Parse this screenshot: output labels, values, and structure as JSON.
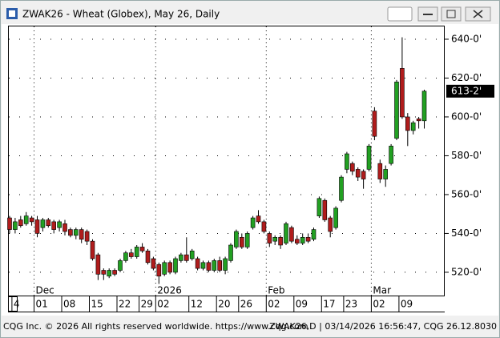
{
  "window": {
    "title": "ZWAK26 - Wheat (Globex), May 26, Daily"
  },
  "footer": {
    "left": "CQG Inc. © 2026 All rights reserved worldwide. https://www.cqg.com",
    "right": "ZWAK26,D | 03/14/2026 16:56:47, CQG 26.12.8030"
  },
  "chart_data": {
    "type": "candlestick",
    "categories": [
      null,
      "4",
      null,
      null,
      null,
      "01",
      null,
      null,
      null,
      null,
      "08",
      null,
      null,
      null,
      null,
      "15",
      null,
      null,
      null,
      null,
      "22",
      null,
      null,
      null,
      "29",
      null,
      null,
      "02",
      null,
      null,
      null,
      null,
      null,
      "12",
      null,
      null,
      null,
      null,
      "20",
      null,
      null,
      null,
      "26",
      null,
      null,
      null,
      null,
      "02",
      null,
      null,
      null,
      null,
      "09",
      null,
      null,
      null,
      null,
      "17",
      null,
      null,
      null,
      "23",
      null,
      null,
      null,
      null,
      "02",
      null,
      null,
      null,
      null,
      "09",
      null,
      null,
      null,
      null
    ],
    "periods": [
      null,
      null,
      null,
      null,
      null,
      "Dec",
      null,
      null,
      null,
      null,
      null,
      null,
      null,
      null,
      null,
      null,
      null,
      null,
      null,
      null,
      null,
      null,
      null,
      null,
      null,
      null,
      null,
      "2026",
      null,
      null,
      null,
      null,
      null,
      null,
      null,
      null,
      null,
      null,
      null,
      null,
      null,
      null,
      null,
      null,
      null,
      null,
      null,
      "Feb",
      null,
      null,
      null,
      null,
      null,
      null,
      null,
      null,
      null,
      null,
      null,
      null,
      null,
      null,
      null,
      null,
      null,
      null,
      "Mar",
      null,
      null,
      null,
      null,
      null,
      null,
      null,
      null,
      null
    ],
    "open": [
      548,
      542,
      547,
      545,
      548,
      547,
      543,
      547,
      546,
      543,
      545,
      542,
      539,
      542,
      541,
      536,
      529,
      521,
      518,
      521,
      521,
      526,
      530,
      528,
      533,
      531,
      527,
      524,
      519,
      525,
      520,
      526,
      529,
      527,
      527,
      522,
      525,
      521,
      526,
      521,
      526,
      533,
      538,
      533,
      543,
      549,
      546,
      540,
      536,
      538,
      535,
      543,
      537,
      535,
      538,
      537,
      549,
      557,
      548,
      543,
      557,
      573,
      576,
      573,
      572,
      573,
      603,
      576,
      568,
      576,
      589,
      625,
      600,
      593,
      599,
      598
    ],
    "high": [
      549,
      548,
      549,
      551,
      549,
      549,
      548,
      548,
      547,
      547,
      547,
      543,
      543,
      543,
      542,
      537,
      530,
      522,
      522,
      522,
      527,
      531,
      532,
      534,
      535,
      532,
      528,
      525,
      526,
      526,
      528,
      530,
      538,
      532,
      528,
      526,
      526,
      527,
      528,
      528,
      535,
      542,
      540,
      541,
      549,
      552,
      547,
      541,
      539,
      539,
      546,
      544,
      539,
      540,
      540,
      543,
      559,
      558,
      549,
      554,
      570,
      582,
      577,
      574,
      573,
      586,
      605,
      578,
      575,
      586,
      619,
      641,
      602,
      598,
      600,
      614
    ],
    "low": [
      540,
      540,
      543,
      544,
      544,
      538,
      541,
      543,
      540,
      541,
      539,
      538,
      537,
      535,
      534,
      526,
      516,
      516,
      517,
      518,
      520,
      525,
      527,
      527,
      530,
      524,
      521,
      514,
      518,
      519,
      519,
      525,
      525,
      526,
      521,
      521,
      520,
      520,
      520,
      519,
      525,
      532,
      532,
      532,
      542,
      545,
      540,
      533,
      534,
      532,
      534,
      535,
      534,
      534,
      535,
      536,
      548,
      546,
      538,
      542,
      556,
      571,
      570,
      567,
      563,
      572,
      588,
      566,
      564,
      575,
      588,
      599,
      585,
      591,
      594,
      594
    ],
    "close": [
      542,
      546,
      544,
      549,
      546,
      540,
      547,
      544,
      542,
      546,
      541,
      539,
      542,
      537,
      536,
      527,
      519,
      519,
      521,
      519,
      526,
      530,
      528,
      533,
      531,
      525,
      522,
      518,
      525,
      520,
      527,
      529,
      526,
      531,
      522,
      525,
      521,
      526,
      521,
      527,
      534,
      541,
      533,
      540,
      548,
      546,
      541,
      535,
      538,
      534,
      545,
      536,
      535,
      538,
      536,
      542,
      558,
      547,
      541,
      553,
      569,
      581,
      572,
      569,
      568,
      585,
      590,
      568,
      573,
      585,
      618,
      600,
      593,
      597,
      598,
      613.25
    ],
    "up_color": "#22a022",
    "down_color": "#b01c1c",
    "ylim": [
      507.6,
      647
    ],
    "yticks": [
      {
        "value": 520,
        "label": "520-0'"
      },
      {
        "value": 540,
        "label": "540-0'"
      },
      {
        "value": 560,
        "label": "560-0'"
      },
      {
        "value": 580,
        "label": "580-0'"
      },
      {
        "value": 600,
        "label": "600-0'"
      },
      {
        "value": 620,
        "label": "620-0'"
      },
      {
        "value": 640,
        "label": "640-0'"
      }
    ],
    "last_price": {
      "value": 613.25,
      "label": "613-2'"
    },
    "grid": true
  }
}
